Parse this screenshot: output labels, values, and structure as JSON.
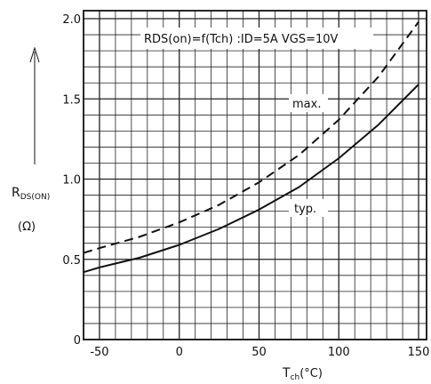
{
  "chart_data": {
    "type": "line",
    "title": "",
    "annotation": "RDS(on)=f(Tch) :ID=5A VGS=10V",
    "xlabel": "Tch(°C)",
    "xlabel_main": "T",
    "xlabel_sub": "ch",
    "xlabel_unit": "(°C)",
    "ylabel_main": "R",
    "ylabel_sub": "DS(ON)",
    "ylabel_unit": "(Ω)",
    "xlim": [
      -60,
      155
    ],
    "ylim": [
      0,
      2.05
    ],
    "x_ticks": [
      -50,
      0,
      50,
      100,
      150
    ],
    "x_tick_labels": [
      "-50",
      "0",
      "50",
      "100",
      "150"
    ],
    "y_ticks": [
      0,
      0.5,
      1.0,
      1.5,
      2.0
    ],
    "y_tick_labels": [
      "0",
      "0.5",
      "1.0",
      "1.5",
      "2.0"
    ],
    "grid": true,
    "series": [
      {
        "name": "max.",
        "style": "dashed",
        "x": [
          -60,
          -50,
          -25,
          0,
          25,
          50,
          75,
          100,
          125,
          150
        ],
        "y": [
          0.54,
          0.57,
          0.64,
          0.73,
          0.84,
          0.98,
          1.15,
          1.37,
          1.64,
          1.98
        ]
      },
      {
        "name": "typ.",
        "style": "solid",
        "x": [
          -60,
          -50,
          -25,
          0,
          25,
          50,
          75,
          100,
          125,
          150
        ],
        "y": [
          0.42,
          0.45,
          0.51,
          0.59,
          0.69,
          0.81,
          0.95,
          1.13,
          1.34,
          1.59
        ]
      }
    ]
  }
}
